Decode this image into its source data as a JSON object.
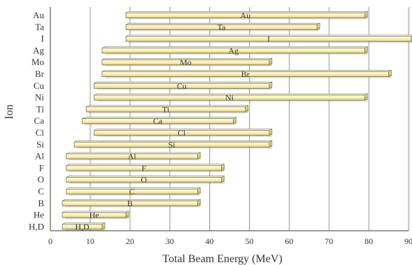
{
  "chart_data": {
    "type": "bar",
    "orientation": "horizontal-range",
    "xlabel": "Total Beam Energy (MeV)",
    "ylabel": "Ion",
    "xlim": [
      0,
      90
    ],
    "x_ticks": [
      "0",
      "10",
      "20",
      "30",
      "40",
      "50",
      "60",
      "70",
      "80",
      "90"
    ],
    "grid": "vertical",
    "legend": "none",
    "colors": {
      "bar_fill_top": "#fffde8",
      "bar_fill_mid": "#f7efb7",
      "bar_fill_bottom": "#d9ce8a",
      "bar_stroke": "#7b7350",
      "bar_end": "#c9bd7a",
      "grid": "#9a9a9a",
      "axis": "#3a3a3a",
      "text": "#333333"
    },
    "categories": [
      "Au",
      "Ta",
      "I",
      "Ag",
      "Mo",
      "Br",
      "Cu",
      "Ni",
      "Ti",
      "Ca",
      "Cl",
      "Si",
      "Al",
      "F",
      "O",
      "C",
      "B",
      "He",
      "H,D"
    ],
    "bar_labels": [
      "Au",
      "Ta",
      "I",
      "Ag",
      "Mo",
      "Br",
      "Cu",
      "Ni",
      "Ti",
      "Ca",
      "Cl",
      "Si",
      "Al",
      "F",
      "O",
      "C",
      "B",
      "He",
      "H,D"
    ],
    "ranges": [
      [
        19,
        79
      ],
      [
        19,
        67
      ],
      [
        19,
        91
      ],
      [
        13,
        79
      ],
      [
        13,
        55
      ],
      [
        13,
        85
      ],
      [
        11,
        55
      ],
      [
        11,
        79
      ],
      [
        9,
        49
      ],
      [
        8,
        46
      ],
      [
        11,
        55
      ],
      [
        6,
        55
      ],
      [
        4,
        37
      ],
      [
        4,
        43
      ],
      [
        4,
        43
      ],
      [
        4,
        37
      ],
      [
        3,
        37
      ],
      [
        3,
        19
      ],
      [
        3,
        13
      ]
    ]
  }
}
